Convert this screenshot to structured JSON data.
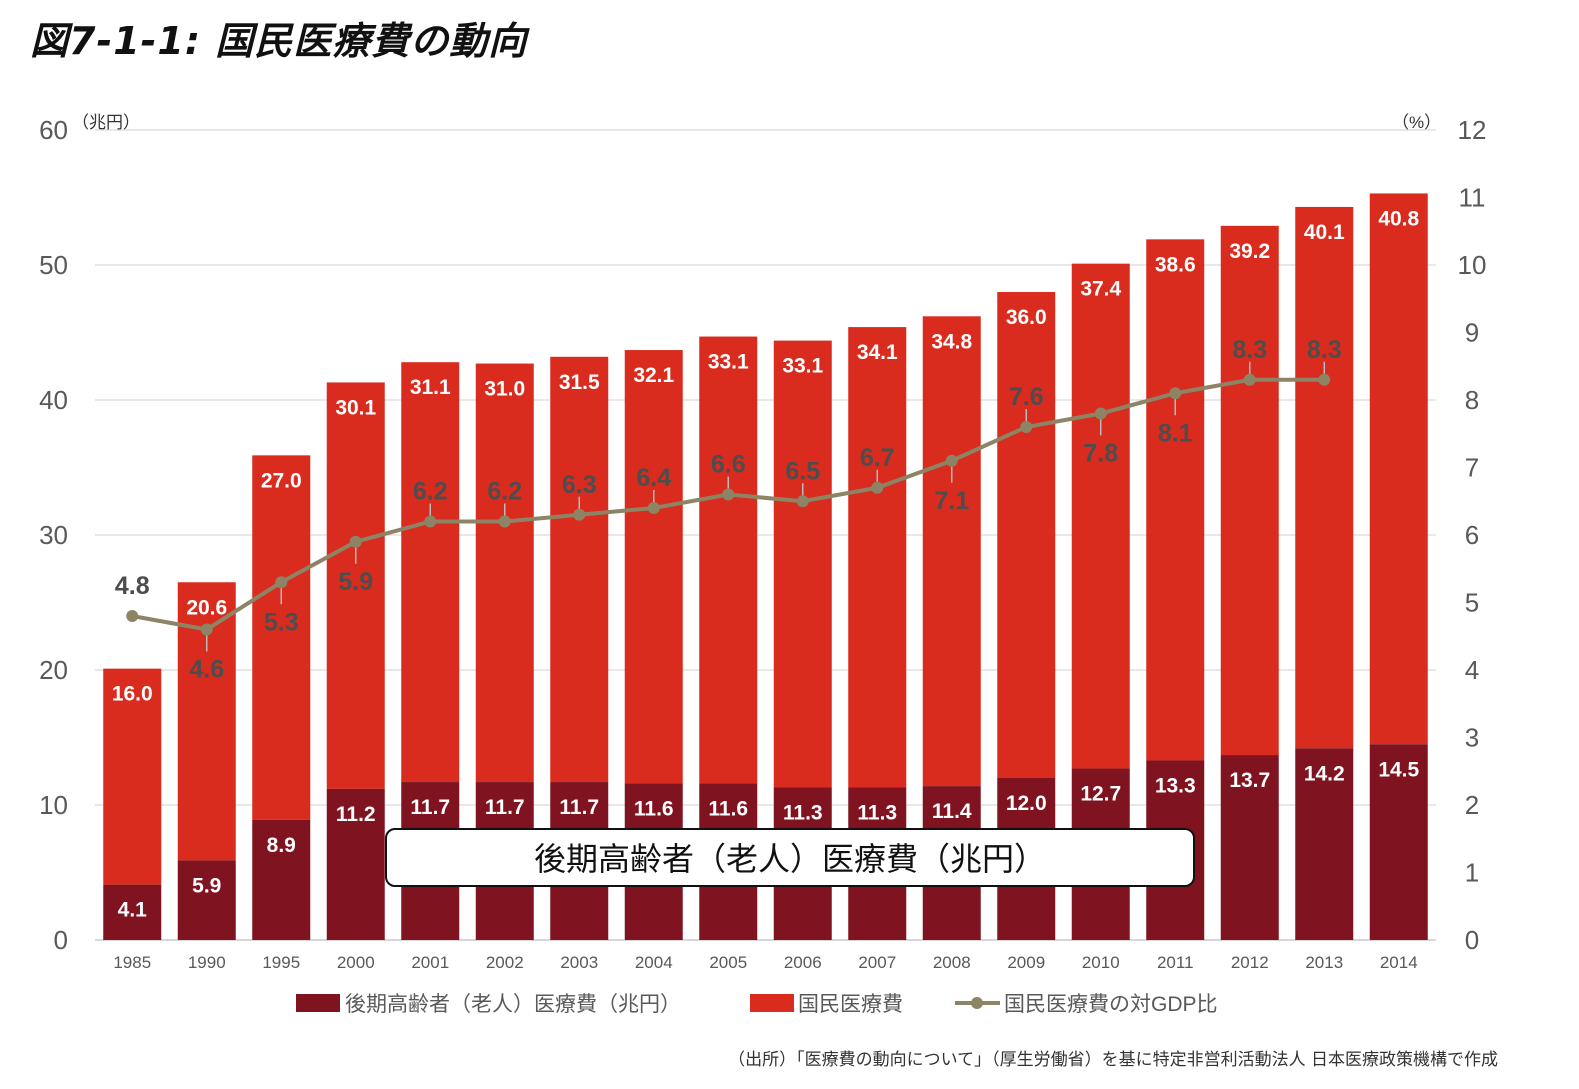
{
  "title": "図7-1-1: 国民医療費の動向",
  "source": "（出所）「医療費の動向について」（厚生労働省）を基に特定非営利活動法人 日本医療政策機構で作成",
  "colors": {
    "total": "#d92b1e",
    "elderly": "#801320",
    "gdp_line": "#8c8465",
    "grid": "#d9d9d9",
    "axis_text": "#595959"
  },
  "chart_data": {
    "type": "bar",
    "categories": [
      "1985",
      "1990",
      "1995",
      "2000",
      "2001",
      "2002",
      "2003",
      "2004",
      "2005",
      "2006",
      "2007",
      "2008",
      "2009",
      "2010",
      "2011",
      "2012",
      "2013",
      "2014"
    ],
    "series": [
      {
        "name": "後期高齢者（老人）医療費（兆円）",
        "axis": "left",
        "values": [
          4.1,
          5.9,
          8.9,
          11.2,
          11.7,
          11.7,
          11.7,
          11.6,
          11.6,
          11.3,
          11.3,
          11.4,
          12.0,
          12.7,
          13.3,
          13.7,
          14.2,
          14.5
        ]
      },
      {
        "name": "国民医療費",
        "axis": "left",
        "values": [
          16.0,
          20.6,
          27.0,
          30.1,
          31.1,
          31.0,
          31.5,
          32.1,
          33.1,
          33.1,
          34.1,
          34.8,
          36.0,
          37.4,
          38.6,
          39.2,
          40.1,
          40.8
        ]
      },
      {
        "name": "国民医療費の対GDP比",
        "type": "line",
        "axis": "right",
        "values": [
          4.8,
          4.6,
          5.3,
          5.9,
          6.2,
          6.2,
          6.3,
          6.4,
          6.6,
          6.5,
          6.7,
          7.1,
          7.6,
          7.8,
          8.1,
          8.3,
          8.3,
          null
        ]
      }
    ],
    "left_axis": {
      "unit": "（兆円）",
      "range": [
        0,
        60
      ],
      "ticks": [
        0,
        10,
        20,
        30,
        40,
        50,
        60
      ]
    },
    "right_axis": {
      "unit": "（%）",
      "range": [
        0,
        12
      ],
      "ticks": [
        0,
        1,
        2,
        3,
        4,
        5,
        6,
        7,
        8,
        9,
        10,
        11,
        12
      ]
    },
    "annotation": "後期高齢者（老人）医療費（兆円）",
    "legend_position": "bottom",
    "grid": true
  }
}
